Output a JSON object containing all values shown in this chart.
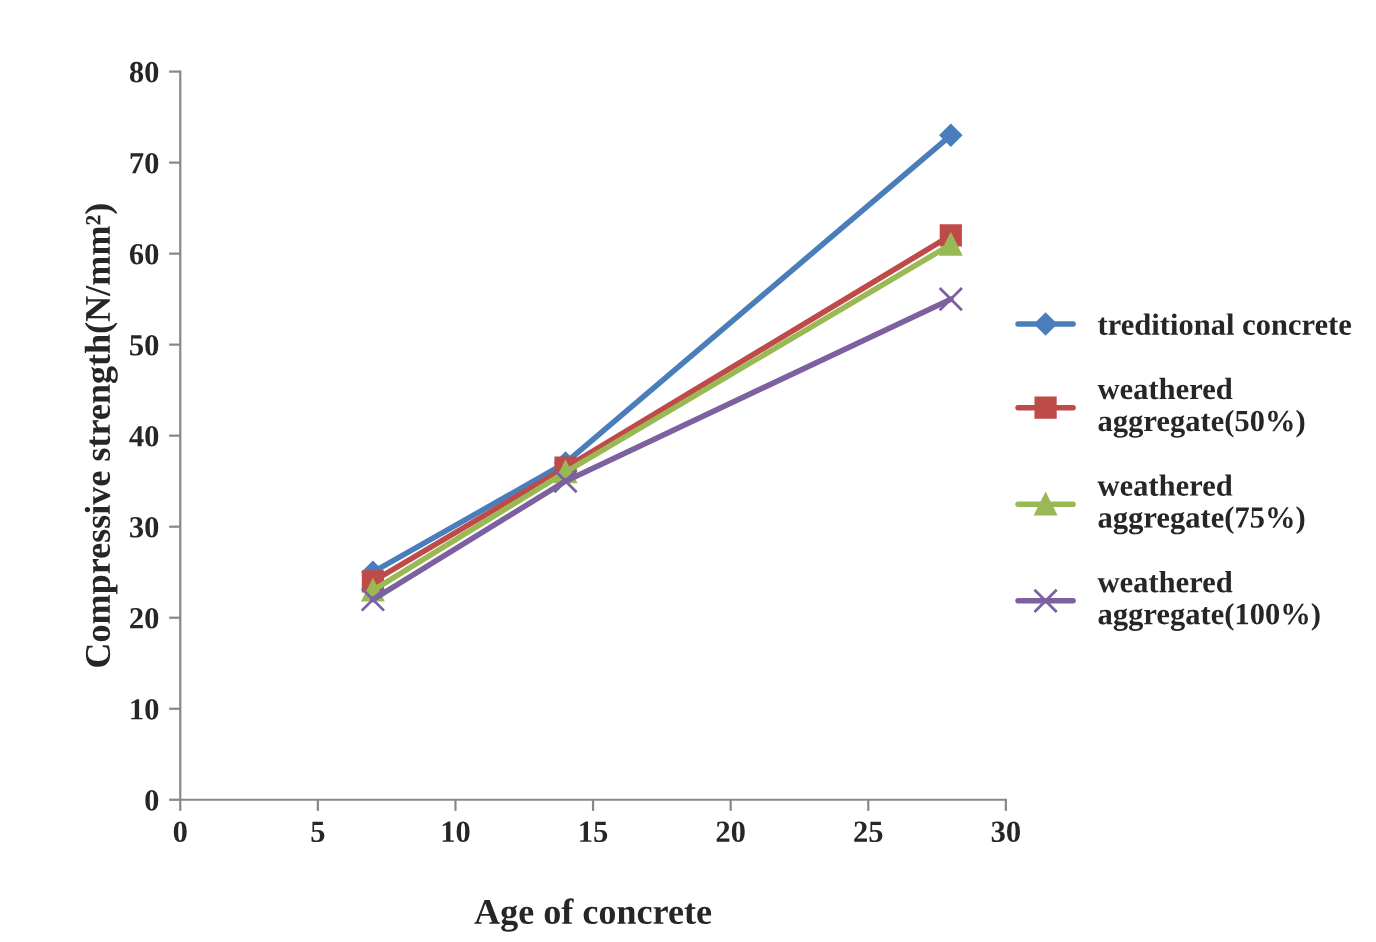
{
  "chart_data": {
    "type": "line",
    "xlabel": "Age of concrete",
    "ylabel": "Compressive strength(N/mm²)",
    "x": [
      7,
      14,
      28
    ],
    "series": [
      {
        "name": "treditional concrete",
        "color": "#4a7ebb",
        "marker": "diamond",
        "values": [
          25,
          37,
          73
        ]
      },
      {
        "name": "weathered\naggregate(50%)",
        "color": "#be4b48",
        "marker": "square",
        "values": [
          24,
          36.5,
          62
        ]
      },
      {
        "name": "weathered\naggregate(75%)",
        "color": "#98b954",
        "marker": "triangle",
        "values": [
          23,
          36,
          61
        ]
      },
      {
        "name": "weathered\naggregate(100%)",
        "color": "#7d60a0",
        "marker": "cross",
        "values": [
          22,
          35,
          55
        ]
      }
    ],
    "xlim": [
      0,
      30
    ],
    "xticks": [
      0,
      5,
      10,
      15,
      20,
      25,
      30
    ],
    "ylim": [
      0,
      80
    ],
    "yticks": [
      0,
      10,
      20,
      30,
      40,
      50,
      60,
      70,
      80
    ],
    "grid": false,
    "legend": "right",
    "line_style": "solid"
  }
}
